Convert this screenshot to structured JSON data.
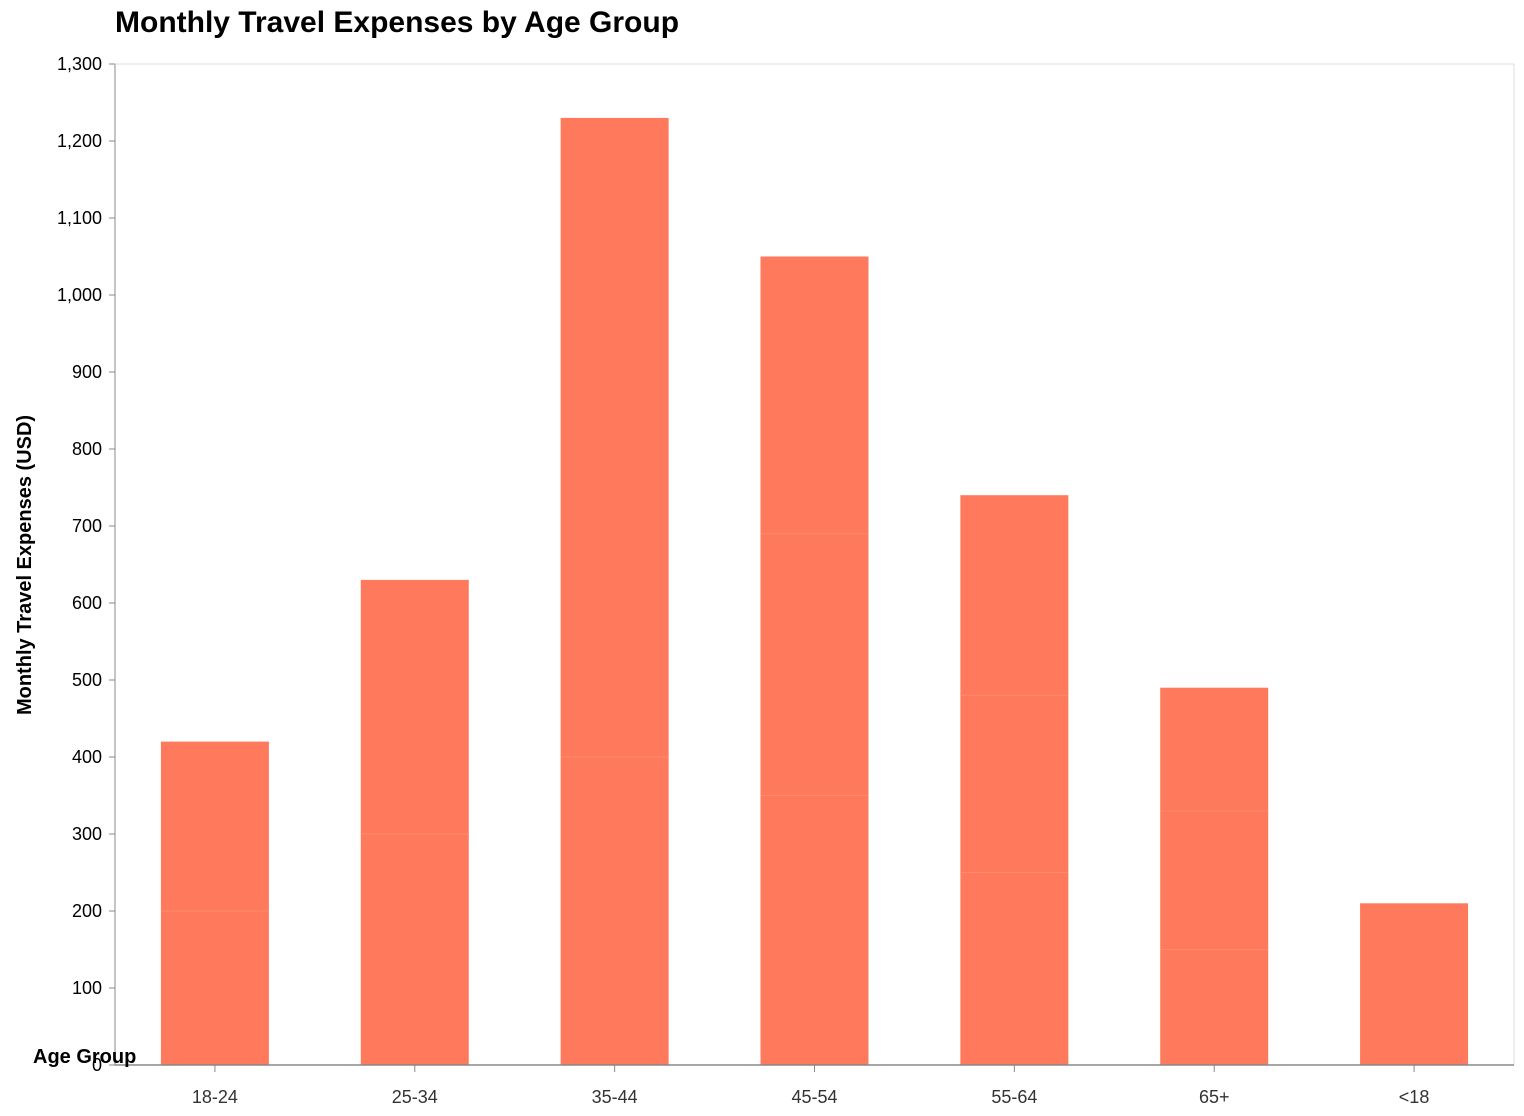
{
  "chart_data": {
    "type": "bar",
    "stacked": true,
    "title": "Monthly Travel Expenses by Age Group",
    "xlabel": "Age Group",
    "ylabel": "Monthly Travel Expenses (USD)",
    "categories": [
      "18-24",
      "25-34",
      "35-44",
      "45-54",
      "55-64",
      "65+",
      "<18"
    ],
    "segments": [
      [
        200,
        220
      ],
      [
        300,
        330
      ],
      [
        400,
        830
      ],
      [
        350,
        340,
        360
      ],
      [
        250,
        230,
        260
      ],
      [
        150,
        180,
        160
      ],
      [
        210
      ]
    ],
    "totals": [
      420,
      630,
      1230,
      1050,
      740,
      490,
      210
    ],
    "ylim": [
      0,
      1300
    ],
    "yticks": [
      0,
      100,
      200,
      300,
      400,
      500,
      600,
      700,
      800,
      900,
      1000,
      1100,
      1200,
      1300
    ],
    "ytick_labels": [
      "0",
      "100",
      "200",
      "300",
      "400",
      "500",
      "600",
      "700",
      "800",
      "900",
      "1,000",
      "1,100",
      "1,200",
      "1,300"
    ],
    "grid": false,
    "bar_color": "#ff7a5c",
    "segment_line_color": "#ff8a6e",
    "axis_color": "#888888"
  }
}
